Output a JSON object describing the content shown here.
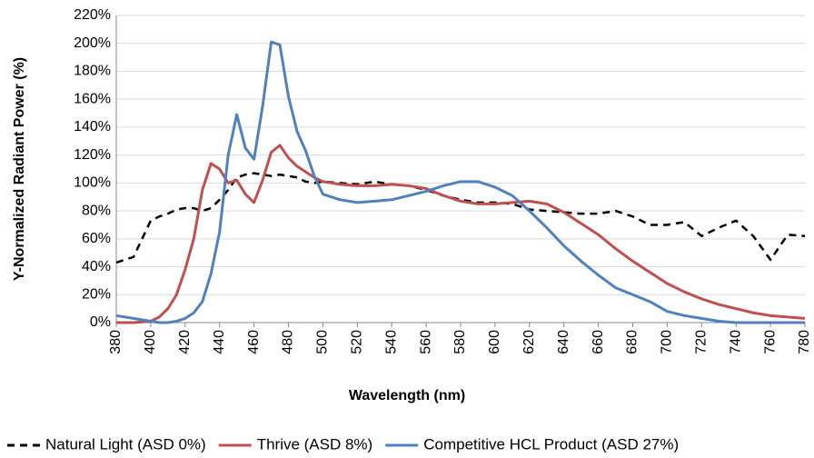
{
  "chart_data": {
    "type": "line",
    "x_label": "Wavelength (nm)",
    "y_label": "Y-Normalized Radiant Power (%)",
    "x": [
      380,
      390,
      400,
      405,
      410,
      415,
      420,
      425,
      430,
      435,
      440,
      445,
      450,
      455,
      460,
      465,
      470,
      475,
      480,
      485,
      490,
      495,
      500,
      510,
      520,
      530,
      540,
      550,
      560,
      570,
      580,
      590,
      600,
      610,
      620,
      630,
      640,
      650,
      660,
      670,
      680,
      690,
      700,
      710,
      720,
      730,
      740,
      750,
      760,
      770,
      780
    ],
    "xlim": [
      380,
      780
    ],
    "xticks": [
      380,
      400,
      420,
      440,
      460,
      480,
      500,
      520,
      540,
      560,
      580,
      600,
      620,
      640,
      660,
      680,
      700,
      720,
      740,
      760,
      780
    ],
    "ylim": [
      0,
      220
    ],
    "yticks": [
      {
        "value": 0,
        "label": "0%"
      },
      {
        "value": 20,
        "label": "20%"
      },
      {
        "value": 40,
        "label": "40%"
      },
      {
        "value": 60,
        "label": "60%"
      },
      {
        "value": 80,
        "label": "80%"
      },
      {
        "value": 100,
        "label": "100%"
      },
      {
        "value": 120,
        "label": "120%"
      },
      {
        "value": 140,
        "label": "140%"
      },
      {
        "value": 160,
        "label": "160%"
      },
      {
        "value": 180,
        "label": "180%"
      },
      {
        "value": 200,
        "label": "200%"
      },
      {
        "value": 220,
        "label": "220%"
      }
    ],
    "grid": true,
    "legend": "bottom",
    "series": [
      {
        "name": "Natural Light (ASD 0%)",
        "color": "#000000",
        "dashed": true,
        "values": [
          43,
          47,
          73,
          76,
          78,
          81,
          82,
          82,
          80,
          82,
          88,
          95,
          104,
          106,
          107,
          106,
          105,
          106,
          105,
          104,
          101,
          100,
          101,
          100,
          99,
          101,
          99,
          98,
          95,
          91,
          88,
          86,
          86,
          85,
          81,
          80,
          79,
          78,
          78,
          80,
          76,
          70,
          70,
          72,
          62,
          68,
          73,
          62,
          45,
          63,
          62
        ]
      },
      {
        "name": "Thrive (ASD 8%)",
        "color": "#c0504d",
        "dashed": false,
        "values": [
          0,
          0,
          1,
          4,
          10,
          20,
          38,
          60,
          95,
          114,
          110,
          100,
          102,
          92,
          86,
          102,
          122,
          127,
          118,
          112,
          108,
          104,
          101,
          99,
          98,
          98,
          99,
          98,
          96,
          91,
          87,
          85,
          85,
          86,
          87,
          85,
          79,
          71,
          63,
          53,
          44,
          36,
          28,
          22,
          17,
          13,
          10,
          7,
          5,
          4,
          3
        ]
      },
      {
        "name": "Competitive HCL Product (ASD 27%)",
        "color": "#4f81bd",
        "dashed": false,
        "values": [
          5,
          3,
          1,
          0,
          0,
          1,
          3,
          7,
          15,
          35,
          65,
          120,
          149,
          125,
          117,
          155,
          201,
          199,
          162,
          137,
          123,
          105,
          92,
          88,
          86,
          87,
          88,
          91,
          94,
          98,
          101,
          101,
          97,
          91,
          80,
          68,
          55,
          44,
          34,
          25,
          20,
          15,
          8,
          5,
          3,
          1,
          0,
          0,
          0,
          0,
          0
        ]
      }
    ]
  }
}
